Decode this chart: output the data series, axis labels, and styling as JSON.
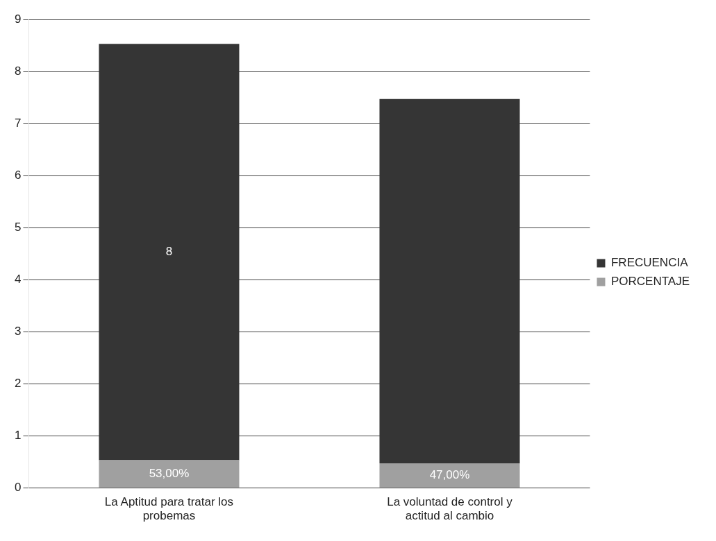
{
  "chart_data": {
    "type": "bar",
    "stacked": true,
    "categories": [
      "La Aptitud para tratar los probemas",
      "La voluntad de control y actitud al cambio"
    ],
    "series": [
      {
        "name": "PORCENTAJE",
        "color": "#a0a0a0",
        "values": [
          0.53,
          0.47
        ],
        "value_labels": [
          "53,00%",
          "47,00%"
        ]
      },
      {
        "name": "FRECUENCIA",
        "color": "#353535",
        "values": [
          8,
          7
        ],
        "value_labels": [
          "8",
          null
        ]
      }
    ],
    "ylim": [
      0,
      9
    ],
    "yticks": [
      0,
      1,
      2,
      3,
      4,
      5,
      6,
      7,
      8,
      9
    ],
    "grid": "y",
    "legend": "right"
  }
}
